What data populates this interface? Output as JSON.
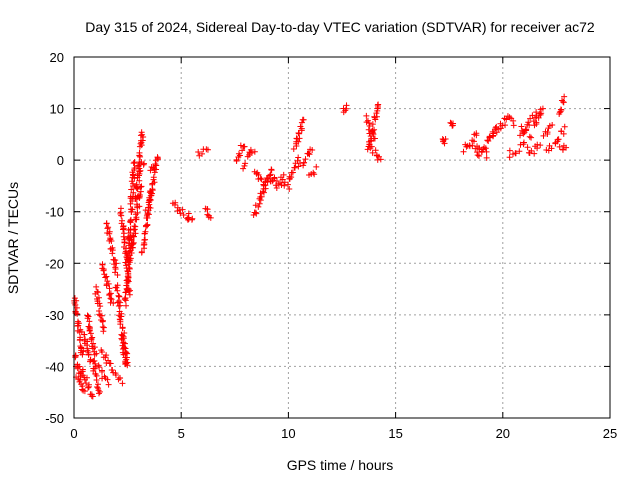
{
  "chart_data": {
    "type": "scatter",
    "title": "Day 315 of 2024, Sidereal Day-to-day VTEC variation (SDTVAR) for receiver ac72",
    "xlabel": "GPS time / hours",
    "ylabel": "SDTVAR / TECUs",
    "xlim": [
      0,
      25
    ],
    "ylim": [
      -50,
      20
    ],
    "xticks": [
      "0",
      "5",
      "10",
      "15",
      "20",
      "25"
    ],
    "yticks": [
      "-50",
      "-40",
      "-30",
      "-20",
      "-10",
      "0",
      "10",
      "20"
    ],
    "grid": true,
    "marker": "+",
    "color": "#ff0000",
    "series": [
      {
        "name": "SDTVAR",
        "segments": [
          {
            "x": [
              0.0,
              0.4
            ],
            "y": [
              -26,
              -38
            ]
          },
          {
            "x": [
              0.0,
              0.3
            ],
            "y": [
              -37,
              -42
            ]
          },
          {
            "x": [
              0.1,
              0.5
            ],
            "y": [
              -42,
              -45
            ]
          },
          {
            "x": [
              0.3,
              0.9
            ],
            "y": [
              -40,
              -46
            ]
          },
          {
            "x": [
              0.4,
              1.2
            ],
            "y": [
              -33,
              -45
            ]
          },
          {
            "x": [
              0.6,
              1.0
            ],
            "y": [
              -30,
              -38
            ]
          },
          {
            "x": [
              0.9,
              1.6
            ],
            "y": [
              -39,
              -43
            ]
          },
          {
            "x": [
              1.0,
              1.4
            ],
            "y": [
              -25,
              -33
            ]
          },
          {
            "x": [
              1.3,
              2.2
            ],
            "y": [
              -37,
              -43
            ]
          },
          {
            "x": [
              1.3,
              1.8
            ],
            "y": [
              -20,
              -28
            ]
          },
          {
            "x": [
              1.5,
              2.0
            ],
            "y": [
              -12,
              -22
            ]
          },
          {
            "x": [
              2.0,
              2.4
            ],
            "y": [
              -24,
              -40
            ]
          },
          {
            "x": [
              2.2,
              2.6
            ],
            "y": [
              -10,
              -26
            ]
          },
          {
            "x": [
              2.3,
              2.5
            ],
            "y": [
              -34,
              -40
            ]
          },
          {
            "x": [
              2.5,
              2.8
            ],
            "y": [
              -20,
              0
            ]
          },
          {
            "x": [
              2.4,
              2.7
            ],
            "y": [
              -28,
              -15
            ]
          },
          {
            "x": [
              2.7,
              3.1
            ],
            "y": [
              -18,
              -5
            ]
          },
          {
            "x": [
              2.9,
              3.2
            ],
            "y": [
              -8,
              6
            ]
          },
          {
            "x": [
              3.0,
              3.3
            ],
            "y": [
              -2,
              0
            ]
          },
          {
            "x": [
              3.2,
              3.6
            ],
            "y": [
              -18,
              -6
            ]
          },
          {
            "x": [
              3.4,
              3.9
            ],
            "y": [
              -10,
              0
            ]
          },
          {
            "x": [
              3.6,
              3.9
            ],
            "y": [
              -2,
              0
            ]
          },
          {
            "x": [
              4.6,
              5.3
            ],
            "y": [
              -8,
              -11
            ]
          },
          {
            "x": [
              5.3,
              5.5
            ],
            "y": [
              -11,
              -11
            ]
          },
          {
            "x": [
              5.8,
              6.2
            ],
            "y": [
              1,
              2.5
            ]
          },
          {
            "x": [
              6.1,
              6.4
            ],
            "y": [
              -9,
              -11
            ]
          },
          {
            "x": [
              7.6,
              7.9
            ],
            "y": [
              0,
              3
            ]
          },
          {
            "x": [
              7.9,
              8.4
            ],
            "y": [
              -1,
              2
            ]
          },
          {
            "x": [
              8.4,
              8.8
            ],
            "y": [
              -11,
              -6
            ]
          },
          {
            "x": [
              8.4,
              8.9
            ],
            "y": [
              -2,
              -5
            ]
          },
          {
            "x": [
              8.8,
              9.2
            ],
            "y": [
              -6,
              -2
            ]
          },
          {
            "x": [
              9.0,
              9.6
            ],
            "y": [
              -3,
              -5
            ]
          },
          {
            "x": [
              9.3,
              9.8
            ],
            "y": [
              -4,
              -3
            ]
          },
          {
            "x": [
              9.6,
              10.0
            ],
            "y": [
              -4,
              -5
            ]
          },
          {
            "x": [
              10.0,
              10.5
            ],
            "y": [
              -4,
              0
            ]
          },
          {
            "x": [
              10.3,
              10.7
            ],
            "y": [
              2,
              8
            ]
          },
          {
            "x": [
              10.6,
              11.1
            ],
            "y": [
              -1,
              2
            ]
          },
          {
            "x": [
              11.0,
              11.3
            ],
            "y": [
              -3,
              -2
            ]
          },
          {
            "x": [
              12.6,
              12.7
            ],
            "y": [
              10,
              10
            ]
          },
          {
            "x": [
              13.6,
              14.0
            ],
            "y": [
              8,
              4
            ]
          },
          {
            "x": [
              13.7,
              14.2
            ],
            "y": [
              2,
              11
            ]
          },
          {
            "x": [
              13.8,
              14.3
            ],
            "y": [
              3,
              0
            ]
          },
          {
            "x": [
              17.2,
              17.3
            ],
            "y": [
              3.5,
              4
            ]
          },
          {
            "x": [
              17.6,
              17.7
            ],
            "y": [
              7,
              7
            ]
          },
          {
            "x": [
              18.2,
              18.8
            ],
            "y": [
              2,
              5
            ]
          },
          {
            "x": [
              18.5,
              19.3
            ],
            "y": [
              3,
              1
            ]
          },
          {
            "x": [
              18.8,
              19.7
            ],
            "y": [
              1,
              6
            ]
          },
          {
            "x": [
              19.5,
              20.2
            ],
            "y": [
              5,
              8
            ]
          },
          {
            "x": [
              20.2,
              20.5
            ],
            "y": [
              8,
              7
            ]
          },
          {
            "x": [
              20.3,
              21.1
            ],
            "y": [
              1,
              3
            ]
          },
          {
            "x": [
              20.8,
              21.6
            ],
            "y": [
              5,
              9
            ]
          },
          {
            "x": [
              20.9,
              21.3
            ],
            "y": [
              6,
              5
            ]
          },
          {
            "x": [
              21.4,
              21.9
            ],
            "y": [
              7,
              10
            ]
          },
          {
            "x": [
              21.2,
              21.7
            ],
            "y": [
              1,
              3
            ]
          },
          {
            "x": [
              21.9,
              22.3
            ],
            "y": [
              5,
              7
            ]
          },
          {
            "x": [
              22.0,
              22.5
            ],
            "y": [
              2,
              3
            ]
          },
          {
            "x": [
              22.5,
              22.9
            ],
            "y": [
              4,
              6
            ]
          },
          {
            "x": [
              22.6,
              22.9
            ],
            "y": [
              9,
              12
            ]
          },
          {
            "x": [
              22.7,
              22.9
            ],
            "y": [
              2,
              3
            ]
          }
        ]
      }
    ]
  }
}
